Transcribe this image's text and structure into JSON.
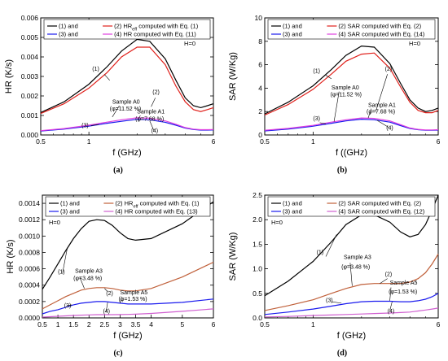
{
  "colors": {
    "series1": "#000000",
    "series2": "#e0201b",
    "series3": "#1a1aee",
    "series4": "#e040e0",
    "series2c": "#c0603a",
    "series4c": "#d060d0"
  },
  "chart_data": [
    {
      "type": "line",
      "panel_label": "(a)",
      "xlabel": "f (GHz)",
      "ylabel": "HR (K/s)",
      "xlim": [
        0.5,
        6
      ],
      "xscale": "log",
      "ylim": [
        0,
        0.006
      ],
      "xticks": [
        {
          "v": 0.5,
          "label": "0.5"
        },
        {
          "v": 1,
          "label": "1"
        },
        {
          "v": 6,
          "label": "6"
        }
      ],
      "yticks": [
        {
          "v": 0,
          "label": "0.000"
        },
        {
          "v": 0.001,
          "label": "0.001"
        },
        {
          "v": 0.002,
          "label": "0.002"
        },
        {
          "v": 0.003,
          "label": "0.003"
        },
        {
          "v": 0.004,
          "label": "0.004"
        },
        {
          "v": 0.005,
          "label": "0.005"
        },
        {
          "v": 0.006,
          "label": "0.006"
        }
      ],
      "state_label": "H=0",
      "legend": [
        "(1) and",
        "(2) HR",
        "computed with Eq. (1)",
        "(3) and",
        "(4) HR computed with Eq. (11)"
      ],
      "legend_sub": "eff",
      "series": [
        {
          "x": [
            0.5,
            0.7,
            1,
            1.3,
            1.6,
            2,
            2.4,
            3,
            3.5,
            4,
            4.5,
            5,
            5.5,
            6
          ],
          "y": [
            0.00115,
            0.0017,
            0.0026,
            0.0035,
            0.0043,
            0.0049,
            0.0048,
            0.0039,
            0.0028,
            0.0019,
            0.0015,
            0.0014,
            0.0015,
            0.0016
          ]
        },
        {
          "x": [
            0.5,
            0.7,
            1,
            1.3,
            1.6,
            2,
            2.4,
            3,
            3.5,
            4,
            4.5,
            5,
            5.5,
            6
          ],
          "y": [
            0.0011,
            0.0016,
            0.0024,
            0.0032,
            0.004,
            0.0045,
            0.0045,
            0.0036,
            0.0025,
            0.0017,
            0.0013,
            0.0012,
            0.0013,
            0.0014
          ]
        },
        {
          "x": [
            0.5,
            0.7,
            1,
            1.3,
            1.6,
            2,
            2.4,
            3,
            3.5,
            4,
            4.5,
            5,
            5.5,
            6
          ],
          "y": [
            0.0002,
            0.0003,
            0.00045,
            0.0006,
            0.0007,
            0.0008,
            0.00078,
            0.00065,
            0.0005,
            0.00035,
            0.00028,
            0.00025,
            0.00025,
            0.00026
          ]
        },
        {
          "x": [
            0.5,
            0.7,
            1,
            1.3,
            1.6,
            2,
            2.4,
            3,
            3.5,
            4,
            4.5,
            5,
            5.5,
            6
          ],
          "y": [
            0.00022,
            0.00033,
            0.0005,
            0.00066,
            0.00078,
            0.00088,
            0.00086,
            0.00072,
            0.00055,
            0.00038,
            0.0003,
            0.00027,
            0.00027,
            0.00028
          ]
        }
      ],
      "annotations": [
        {
          "text": "(1)",
          "x": 1.05,
          "y": 0.0033,
          "lx1": 1.25,
          "ly1": 0.0031,
          "lx2": 1.35,
          "ly2": 0.0028
        },
        {
          "text": "(2)",
          "x": 2.5,
          "y": 0.0021,
          "lx1": 2.6,
          "ly1": 0.0019,
          "lx2": 2.45,
          "ly2": 0.00145
        },
        {
          "text": "Sample A0",
          "x": 1.4,
          "y": 0.0016,
          "lx1": 1.55,
          "ly1": 0.0015,
          "lx2": 1.4,
          "ly2": 0.00092
        },
        {
          "text": "(φ=11.52 %)",
          "x": 1.35,
          "y": 0.00125
        },
        {
          "text": "Sample A1",
          "x": 2.0,
          "y": 0.0011,
          "lx1": 2.1,
          "ly1": 0.001,
          "lx2": 2.05,
          "ly2": 0.00088
        },
        {
          "text": "(φ=7.68 %)",
          "x": 1.95,
          "y": 0.00073
        },
        {
          "text": "(3)",
          "x": 0.9,
          "y": 0.0004,
          "lx1": 1.03,
          "ly1": 0.00048,
          "lx2": 1.15,
          "ly2": 0.00054
        },
        {
          "text": "(4)",
          "x": 2.45,
          "y": 0.00012,
          "lx1": 2.55,
          "ly1": 0.00022,
          "lx2": 2.4,
          "ly2": 0.00072
        }
      ]
    },
    {
      "type": "line",
      "panel_label": "(b)",
      "xlabel": "f ((GHz)",
      "ylabel": "SAR (W/Kg)",
      "xlim": [
        0.5,
        6
      ],
      "xscale": "log",
      "ylim": [
        0,
        10
      ],
      "xticks": [
        {
          "v": 0.5,
          "label": "0.5"
        },
        {
          "v": 1,
          "label": "1"
        },
        {
          "v": 6,
          "label": "6"
        }
      ],
      "yticks": [
        {
          "v": 0,
          "label": "0"
        },
        {
          "v": 2,
          "label": "2"
        },
        {
          "v": 4,
          "label": "4"
        },
        {
          "v": 6,
          "label": "6"
        },
        {
          "v": 8,
          "label": "8"
        },
        {
          "v": 10,
          "label": "10"
        }
      ],
      "state_label": "H=0",
      "legend": [
        "(1) and",
        "(2) SAR computed with Eq. (2)",
        "(3) and",
        "(4) SAR computed with Eq. (14)"
      ],
      "series": [
        {
          "x": [
            0.5,
            0.7,
            1,
            1.3,
            1.6,
            2,
            2.4,
            3,
            3.5,
            4,
            4.5,
            5,
            5.5,
            6
          ],
          "y": [
            1.8,
            2.8,
            4.2,
            5.6,
            6.8,
            7.6,
            7.5,
            6.1,
            4.4,
            3.0,
            2.3,
            2.0,
            2.1,
            2.3
          ]
        },
        {
          "x": [
            0.5,
            0.7,
            1,
            1.3,
            1.6,
            2,
            2.4,
            3,
            3.5,
            4,
            4.5,
            5,
            5.5,
            6
          ],
          "y": [
            1.7,
            2.6,
            3.9,
            5.2,
            6.3,
            6.9,
            7.0,
            5.7,
            4.1,
            2.8,
            2.1,
            1.9,
            1.9,
            2.1
          ]
        },
        {
          "x": [
            0.5,
            0.7,
            1,
            1.3,
            1.6,
            2,
            2.4,
            3,
            3.5,
            4,
            4.5,
            5,
            5.5,
            6
          ],
          "y": [
            0.35,
            0.5,
            0.75,
            1.0,
            1.2,
            1.35,
            1.3,
            1.1,
            0.8,
            0.55,
            0.45,
            0.4,
            0.4,
            0.42
          ]
        },
        {
          "x": [
            0.5,
            0.7,
            1,
            1.3,
            1.6,
            2,
            2.4,
            3,
            3.5,
            4,
            4.5,
            5,
            5.5,
            6
          ],
          "y": [
            0.4,
            0.56,
            0.82,
            1.1,
            1.3,
            1.45,
            1.42,
            1.2,
            0.88,
            0.6,
            0.48,
            0.43,
            0.43,
            0.45
          ]
        }
      ],
      "annotations": [
        {
          "text": "(1)",
          "x": 1.0,
          "y": 5.3,
          "lx1": 1.2,
          "ly1": 5.1,
          "lx2": 1.3,
          "ly2": 4.8
        },
        {
          "text": "(2)",
          "x": 2.8,
          "y": 5.5,
          "lx1": 2.9,
          "ly1": 5.2,
          "lx2": 2.45,
          "ly2": 2.0
        },
        {
          "text": "Sample A0",
          "x": 1.3,
          "y": 3.9,
          "lx1": 1.45,
          "ly1": 3.7,
          "lx2": 1.35,
          "ly2": 1.15
        },
        {
          "text": "(φ=11.52 %)",
          "x": 1.28,
          "y": 3.3
        },
        {
          "text": "Sample A1",
          "x": 2.2,
          "y": 2.4,
          "lx1": 2.3,
          "ly1": 2.25,
          "lx2": 2.2,
          "ly2": 1.45
        },
        {
          "text": "(φ=7.68 %)",
          "x": 2.15,
          "y": 1.85
        },
        {
          "text": "(3)",
          "x": 1.0,
          "y": 1.25,
          "lx1": 1.1,
          "ly1": 1.05,
          "lx2": 1.2,
          "ly2": 0.95
        },
        {
          "text": "(4)",
          "x": 2.85,
          "y": 0.45,
          "lx1": 2.95,
          "ly1": 0.65,
          "lx2": 2.5,
          "ly2": 1.25
        }
      ]
    },
    {
      "type": "line",
      "panel_label": "(c)",
      "xlabel": "f (GHz)",
      "ylabel": "HR (K/s)",
      "xlim": [
        0.5,
        6
      ],
      "xscale": "linear",
      "ylim": [
        0,
        0.0015
      ],
      "xticks": [
        {
          "v": 0.5,
          "label": "0.5"
        },
        {
          "v": 1,
          "label": "1"
        },
        {
          "v": 1.5,
          "label": "1.5"
        },
        {
          "v": 2,
          "label": "2"
        },
        {
          "v": 2.5,
          "label": "2.5"
        },
        {
          "v": 3,
          "label": "3"
        },
        {
          "v": 3.5,
          "label": "3.5"
        },
        {
          "v": 4,
          "label": "4"
        },
        {
          "v": 5,
          "label": "5"
        },
        {
          "v": 6,
          "label": "6"
        }
      ],
      "yticks": [
        {
          "v": 0,
          "label": "0.0000"
        },
        {
          "v": 0.0002,
          "label": "0.0002"
        },
        {
          "v": 0.0004,
          "label": "0.0004"
        },
        {
          "v": 0.0006,
          "label": "0.0006"
        },
        {
          "v": 0.0008,
          "label": "0.0008"
        },
        {
          "v": 0.001,
          "label": "0.0010"
        },
        {
          "v": 0.0012,
          "label": "0.0012"
        },
        {
          "v": 0.0014,
          "label": "0.0014"
        }
      ],
      "state_label": "H=0",
      "legend": [
        "(1) and",
        "(2) HR",
        "computed with Eq. (1)",
        "(3) and",
        "(4) HR computed with Eq. (13)"
      ],
      "legend_sub": "eff",
      "series": [
        {
          "x": [
            0.5,
            0.75,
            1,
            1.25,
            1.5,
            1.75,
            2,
            2.25,
            2.5,
            2.75,
            3,
            3.25,
            3.5,
            4,
            5,
            6
          ],
          "y": [
            0.00035,
            0.0005,
            0.00066,
            0.00082,
            0.00097,
            0.00109,
            0.00118,
            0.0012,
            0.00119,
            0.00113,
            0.00104,
            0.00097,
            0.00095,
            0.00097,
            0.00115,
            0.00142
          ]
        },
        {
          "x": [
            0.5,
            0.75,
            1,
            1.25,
            1.5,
            1.75,
            2,
            2.25,
            2.5,
            2.75,
            3,
            3.25,
            3.5,
            4,
            5,
            6
          ],
          "y": [
            0.00011,
            0.00016,
            0.00021,
            0.00026,
            0.0003,
            0.00034,
            0.00036,
            0.00037,
            0.00037,
            0.00036,
            0.00034,
            0.00033,
            0.00033,
            0.00036,
            0.0005,
            0.00068
          ]
        },
        {
          "x": [
            0.5,
            0.75,
            1,
            1.25,
            1.5,
            1.75,
            2,
            2.25,
            2.5,
            2.75,
            3,
            3.25,
            3.5,
            4,
            5,
            6
          ],
          "y": [
            5e-05,
            8e-05,
            0.0001,
            0.00013,
            0.00016,
            0.00018,
            0.00019,
            0.0002,
            0.0002,
            0.00019,
            0.00018,
            0.00017,
            0.00017,
            0.00017,
            0.00019,
            0.00023
          ]
        },
        {
          "x": [
            0.5,
            0.75,
            1,
            1.25,
            1.5,
            1.75,
            2,
            2.25,
            2.5,
            2.75,
            3,
            3.25,
            3.5,
            4,
            5,
            6
          ],
          "y": [
            1e-05,
            1.5e-05,
            2e-05,
            2.5e-05,
            3e-05,
            3.4e-05,
            3.7e-05,
            4e-05,
            4e-05,
            4e-05,
            4.1e-05,
            4.3e-05,
            4.6e-05,
            5.5e-05,
            8e-05,
            0.00011
          ]
        }
      ],
      "annotations": [
        {
          "text": "(1)",
          "x": 1.0,
          "y": 0.00054,
          "lx1": 1.15,
          "ly1": 0.00055,
          "lx2": 1.3,
          "ly2": 0.00085
        },
        {
          "text": "(2)",
          "x": 2.55,
          "y": 0.00028,
          "lx1": 2.6,
          "ly1": 0.00032,
          "lx2": 2.5,
          "ly2": 0.00036
        },
        {
          "text": "Sample A3",
          "x": 1.55,
          "y": 0.00055,
          "lx1": 1.7,
          "ly1": 0.0005,
          "lx2": 1.85,
          "ly2": 0.00036
        },
        {
          "text": "(φ=3.48 %)",
          "x": 1.5,
          "y": 0.00046
        },
        {
          "text": "Sample A5",
          "x": 3.0,
          "y": 0.00029,
          "lx1": 3.05,
          "ly1": 0.00026,
          "lx2": 3.0,
          "ly2": 0.00018
        },
        {
          "text": "(φ=1.53 %)",
          "x": 2.95,
          "y": 0.00021
        },
        {
          "text": "(3)",
          "x": 1.2,
          "y": 0.00013,
          "lx1": 1.3,
          "ly1": 0.00015,
          "lx2": 1.45,
          "ly2": 0.00016
        },
        {
          "text": "(4)",
          "x": 2.45,
          "y": 6e-05,
          "lx1": 2.55,
          "ly1": 8e-05,
          "lx2": 2.6,
          "ly2": 0.00019
        }
      ]
    },
    {
      "type": "line",
      "panel_label": "(d)",
      "xlabel": "f (GHz)",
      "ylabel": "SAR (W/Kg)",
      "xlim": [
        0.5,
        6
      ],
      "xscale": "log",
      "ylim": [
        0,
        2.5
      ],
      "xticks": [
        {
          "v": 0.5,
          "label": "0.5"
        },
        {
          "v": 1,
          "label": "1"
        },
        {
          "v": 6,
          "label": "6"
        }
      ],
      "yticks": [
        {
          "v": 0,
          "label": "0.0"
        },
        {
          "v": 0.5,
          "label": "0.5"
        },
        {
          "v": 1,
          "label": "1.0"
        },
        {
          "v": 1.5,
          "label": "1.5"
        },
        {
          "v": 2,
          "label": "2.0"
        },
        {
          "v": 2.5,
          "label": "2.5"
        }
      ],
      "state_label": "H=0",
      "legend": [
        "(1) and",
        "(2) SAR computed with Eq. (2)",
        "(3) and",
        "(4) SAR computed with Eq. (12)"
      ],
      "series": [
        {
          "x": [
            0.5,
            0.7,
            1,
            1.3,
            1.6,
            2,
            2.4,
            3,
            3.5,
            4,
            4.5,
            5,
            5.5,
            6
          ],
          "y": [
            0.45,
            0.75,
            1.15,
            1.55,
            1.9,
            2.1,
            2.1,
            1.95,
            1.75,
            1.65,
            1.7,
            1.9,
            2.2,
            2.5
          ]
        },
        {
          "x": [
            0.5,
            0.7,
            1,
            1.3,
            1.6,
            2,
            2.4,
            3,
            3.5,
            4,
            4.5,
            5,
            5.5,
            6
          ],
          "y": [
            0.15,
            0.25,
            0.37,
            0.5,
            0.6,
            0.68,
            0.7,
            0.7,
            0.7,
            0.73,
            0.8,
            0.92,
            1.1,
            1.3
          ]
        },
        {
          "x": [
            0.5,
            0.7,
            1,
            1.3,
            1.6,
            2,
            2.4,
            3,
            3.5,
            4,
            4.5,
            5,
            5.5,
            6
          ],
          "y": [
            0.07,
            0.12,
            0.18,
            0.24,
            0.29,
            0.33,
            0.34,
            0.34,
            0.33,
            0.33,
            0.35,
            0.38,
            0.43,
            0.5
          ]
        },
        {
          "x": [
            0.5,
            0.7,
            1,
            1.3,
            1.6,
            2,
            2.4,
            3,
            3.5,
            4,
            4.5,
            5,
            5.5,
            6
          ],
          "y": [
            0.02,
            0.03,
            0.05,
            0.06,
            0.07,
            0.08,
            0.09,
            0.1,
            0.11,
            0.12,
            0.14,
            0.16,
            0.18,
            0.2
          ]
        }
      ],
      "annotations": [
        {
          "text": "(1)",
          "x": 1.05,
          "y": 1.3,
          "lx1": 1.2,
          "ly1": 1.25,
          "lx2": 1.4,
          "ly2": 1.7
        },
        {
          "text": "(2)",
          "x": 2.8,
          "y": 0.85,
          "lx1": 2.9,
          "ly1": 0.8,
          "lx2": 2.6,
          "ly2": 0.7
        },
        {
          "text": "Sample A3",
          "x": 1.55,
          "y": 1.2,
          "lx1": 1.7,
          "ly1": 1.12,
          "lx2": 1.75,
          "ly2": 0.65
        },
        {
          "text": "(φ=3.48 %)",
          "x": 1.5,
          "y": 1.0
        },
        {
          "text": "Sample A5",
          "x": 3.0,
          "y": 0.68,
          "lx1": 3.05,
          "ly1": 0.62,
          "lx2": 3.0,
          "ly2": 0.35
        },
        {
          "text": "(φ=1.53 %)",
          "x": 2.95,
          "y": 0.5
        },
        {
          "text": "(3)",
          "x": 1.2,
          "y": 0.32,
          "lx1": 1.3,
          "ly1": 0.33,
          "lx2": 1.5,
          "ly2": 0.3
        },
        {
          "text": "(4)",
          "x": 2.9,
          "y": 0.1,
          "lx1": 3.0,
          "ly1": 0.15,
          "lx2": 3.1,
          "ly2": 0.33
        }
      ]
    }
  ]
}
